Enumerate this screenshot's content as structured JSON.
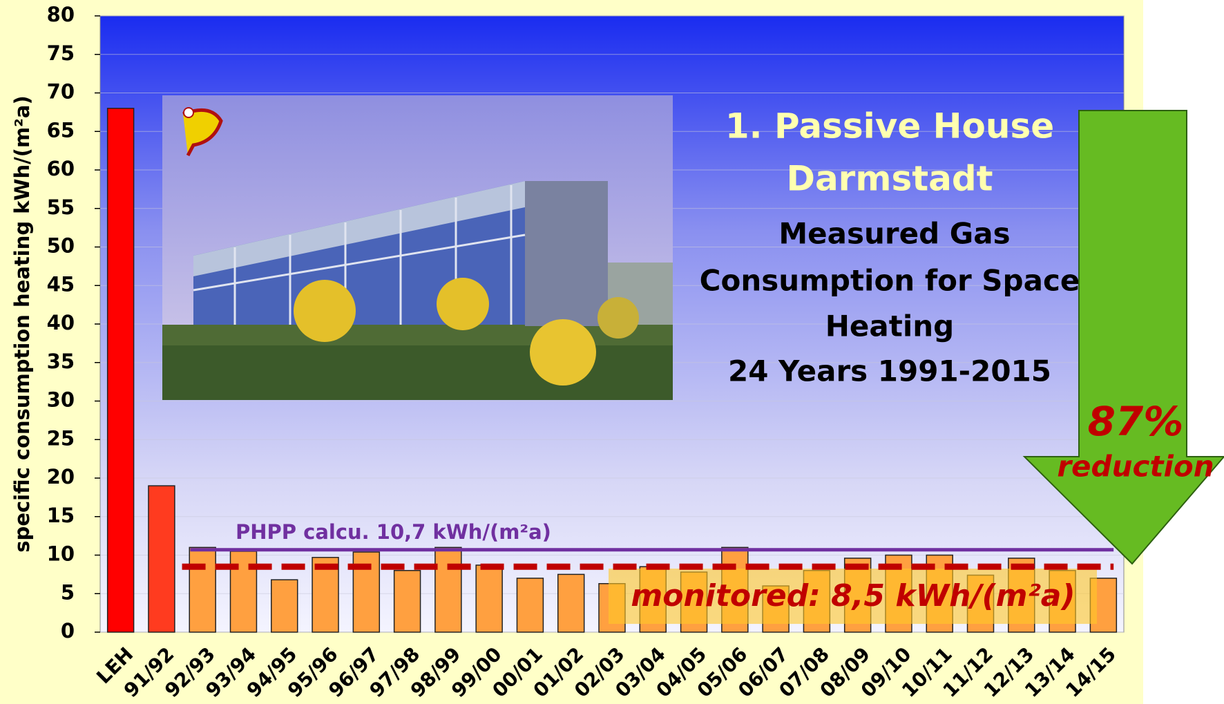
{
  "chart_data": {
    "type": "bar",
    "title_lines": [
      "1. Passive House",
      "Darmstadt"
    ],
    "subtitle_lines": [
      "Measured Gas",
      "Consumption for Space",
      "Heating",
      "24 Years 1991-2015"
    ],
    "ylabel": "specific consumption heating kWh/(m²a)",
    "categories": [
      "LEH",
      "91/92",
      "92/93",
      "93/94",
      "94/95",
      "95/96",
      "96/97",
      "97/98",
      "98/99",
      "99/00",
      "00/01",
      "01/02",
      "02/03",
      "03/04",
      "04/05",
      "05/06",
      "06/07",
      "07/08",
      "08/09",
      "09/10",
      "10/11",
      "11/12",
      "12/13",
      "13/14",
      "14/15"
    ],
    "values": [
      68,
      19,
      11,
      10.5,
      6.8,
      9.7,
      10.4,
      8,
      11,
      8.7,
      7,
      7.5,
      6.3,
      8.5,
      7.8,
      11,
      6,
      8,
      9.6,
      10,
      10,
      7.4,
      9.6,
      8,
      7
    ],
    "colors": [
      "#ff0000",
      "#ff3b1f",
      "#ffa040",
      "#ffa040",
      "#ffa040",
      "#ffa040",
      "#ffa040",
      "#ffa040",
      "#ffa040",
      "#ffa040",
      "#ffa040",
      "#ffa040",
      "#ffa040",
      "#ffa040",
      "#ffa040",
      "#ffa040",
      "#ffa040",
      "#ffa040",
      "#ffa040",
      "#ffa040",
      "#ffa040",
      "#ffa040",
      "#ffa040",
      "#ffa040",
      "#ffa040"
    ],
    "ylim": [
      0,
      80
    ],
    "yticks": [
      0,
      5,
      10,
      15,
      20,
      25,
      30,
      35,
      40,
      45,
      50,
      55,
      60,
      65,
      70,
      75,
      80
    ],
    "grid": true,
    "reference_lines": [
      {
        "value": 10.7,
        "label": "PHPP calcu. 10,7 kWh/(m²a)",
        "color": "#7030a0",
        "style": "solid"
      },
      {
        "value": 8.5,
        "label": "monitored: 8,5 kWh/(m²a)",
        "color": "#c00000",
        "style": "dashed"
      }
    ],
    "annotation": {
      "text": "87%",
      "subtext": "reduction"
    }
  }
}
